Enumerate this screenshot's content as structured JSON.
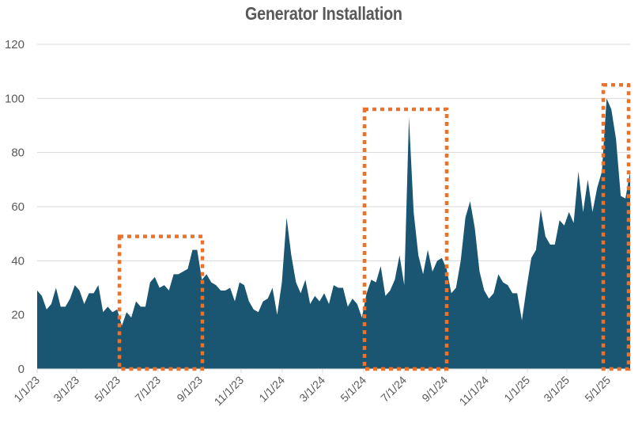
{
  "chart_data": {
    "type": "area",
    "title": "Generator Installation",
    "xlabel": "",
    "ylabel": "",
    "ylim": [
      0,
      120
    ],
    "yticks": [
      0,
      20,
      40,
      60,
      80,
      100,
      120
    ],
    "xtick_labels": [
      "1/1/23",
      "3/1/23",
      "5/1/23",
      "7/1/23",
      "9/1/23",
      "11/1/23",
      "1/1/24",
      "3/1/24",
      "5/1/24",
      "7/1/24",
      "9/1/24",
      "11/1/24",
      "1/1/25",
      "3/1/25",
      "5/1/25"
    ],
    "grid": true,
    "legend": "none",
    "frequency": "weekly",
    "series": [
      {
        "name": "Generator Installation",
        "color": "#1A5672",
        "values": [
          29,
          27,
          22,
          24,
          30,
          23,
          23,
          26,
          31,
          29,
          24,
          28,
          28,
          31,
          21,
          23,
          21,
          22,
          16,
          21,
          19,
          25,
          23,
          23,
          32,
          34,
          30,
          31,
          29,
          35,
          35,
          36,
          37,
          44,
          44,
          33,
          35,
          32,
          31,
          29,
          29,
          30,
          25,
          32,
          31,
          25,
          22,
          21,
          25,
          26,
          30,
          20,
          32,
          56,
          42,
          32,
          28,
          33,
          24,
          27,
          25,
          28,
          24,
          31,
          30,
          30,
          23,
          26,
          24,
          19,
          28,
          33,
          32,
          38,
          27,
          29,
          33,
          42,
          31,
          93,
          58,
          42,
          35,
          44,
          36,
          40,
          41,
          37,
          28,
          30,
          40,
          56,
          62,
          52,
          36,
          29,
          26,
          28,
          35,
          32,
          31,
          28,
          28,
          18,
          30,
          41,
          44,
          59,
          49,
          46,
          46,
          55,
          53,
          58,
          54,
          73,
          58,
          70,
          58,
          67,
          73,
          100,
          96,
          85,
          64,
          63,
          73
        ]
      }
    ],
    "annotations": [
      {
        "type": "dotted-rectangle",
        "color": "#F07025",
        "x_start": "5/1/23",
        "x_end": "9/1/23",
        "y_top": 49,
        "y_bottom": 0
      },
      {
        "type": "dotted-rectangle",
        "color": "#F07025",
        "x_start": "5/1/24",
        "x_end": "9/1/24",
        "y_top": 96,
        "y_bottom": 0
      },
      {
        "type": "dotted-rectangle",
        "color": "#F07025",
        "x_start": "4/22/25",
        "x_end": "6/9/25",
        "y_top": 105,
        "y_bottom": 0
      }
    ]
  },
  "colors": {
    "area": "#1A5672",
    "highlight": "#F07025",
    "grid": "#D9D9D9",
    "text": "#595959"
  }
}
